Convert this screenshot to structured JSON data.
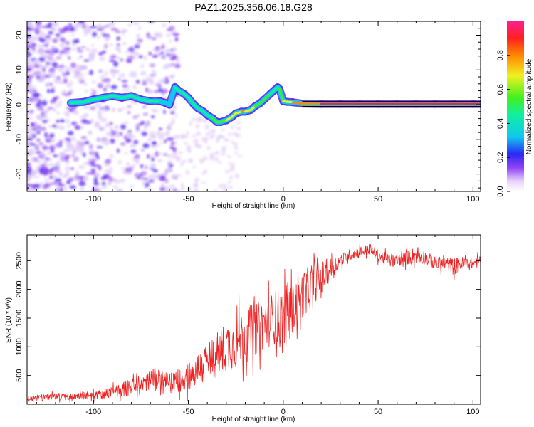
{
  "title": "PAZ1.2025.356.06.18.G28",
  "chart_data": [
    {
      "type": "heatmap",
      "name": "spectrogram",
      "xlabel": "Height of straight line (km)",
      "ylabel": "Frequency (Hz)",
      "xlim": [
        -135,
        104
      ],
      "ylim": [
        -25,
        24
      ],
      "xticks": [
        -100,
        -50,
        0,
        50,
        100
      ],
      "yticks": [
        -20,
        -10,
        0,
        10,
        20
      ],
      "colorbar": {
        "label": "Normalized spectral amplitude",
        "range": [
          0.0,
          1.0
        ],
        "ticks": [
          0.0,
          0.2,
          0.4,
          0.6,
          0.8
        ]
      },
      "ridge": {
        "x": [
          -112,
          -105,
          -100,
          -95,
          -90,
          -85,
          -80,
          -75,
          -70,
          -65,
          -62,
          -60,
          -57,
          -55,
          -52,
          -50,
          -47,
          -45,
          -42,
          -40,
          -37,
          -35,
          -33,
          -30,
          -27,
          -25,
          -22,
          -20,
          -17,
          -15,
          -12,
          -10,
          -7,
          -5,
          -3,
          -2,
          0,
          2,
          5,
          10,
          20,
          30,
          40,
          50,
          60,
          70,
          80,
          90,
          100,
          104
        ],
        "freq": [
          0.5,
          0.8,
          1.5,
          2,
          2.5,
          2,
          2.5,
          1.5,
          1,
          1,
          0.5,
          0,
          5,
          4,
          3,
          2,
          0,
          -1,
          -2,
          -3,
          -4,
          -5,
          -5,
          -4.5,
          -3.5,
          -2.5,
          -2,
          -2,
          -1.5,
          -0.5,
          0.5,
          1.5,
          3,
          4,
          5,
          4.5,
          1,
          0.8,
          0.7,
          0.3,
          0.2,
          0.2,
          0.2,
          0.2,
          0.2,
          0.2,
          0.2,
          0.2,
          0.2,
          0.2
        ],
        "amplitude": [
          0.35,
          0.35,
          0.4,
          0.45,
          0.45,
          0.4,
          0.45,
          0.4,
          0.35,
          0.3,
          0.3,
          0.3,
          0.3,
          0.35,
          0.35,
          0.4,
          0.4,
          0.45,
          0.45,
          0.45,
          0.45,
          0.5,
          0.5,
          0.55,
          0.6,
          0.65,
          0.7,
          0.7,
          0.6,
          0.55,
          0.5,
          0.5,
          0.45,
          0.45,
          0.4,
          0.45,
          0.55,
          0.6,
          0.65,
          0.75,
          0.8,
          0.85,
          0.85,
          0.85,
          0.85,
          0.85,
          0.85,
          0.85,
          0.85,
          0.85
        ]
      }
    },
    {
      "type": "line",
      "name": "snr",
      "xlabel": "Height of straight line (km)",
      "ylabel": "SNR (10 * v/v)",
      "xlim": [
        -135,
        104
      ],
      "ylim": [
        0,
        2950
      ],
      "xticks": [
        -100,
        -50,
        0,
        50,
        100
      ],
      "yticks": [
        500,
        1000,
        1500,
        2000,
        2500
      ],
      "color": "#ee2222",
      "series": {
        "x": [
          -135,
          -130,
          -125,
          -120,
          -115,
          -110,
          -105,
          -100,
          -95,
          -90,
          -85,
          -80,
          -75,
          -70,
          -65,
          -60,
          -55,
          -50,
          -45,
          -40,
          -35,
          -30,
          -25,
          -20,
          -15,
          -10,
          -5,
          0,
          5,
          10,
          15,
          20,
          25,
          30,
          35,
          40,
          45,
          50,
          55,
          60,
          65,
          70,
          75,
          80,
          85,
          90,
          95,
          100,
          104
        ],
        "y": [
          100,
          110,
          130,
          140,
          130,
          140,
          150,
          160,
          180,
          210,
          250,
          300,
          350,
          420,
          430,
          380,
          400,
          500,
          600,
          700,
          850,
          1000,
          1050,
          1200,
          1300,
          1400,
          1500,
          1450,
          1700,
          1900,
          2050,
          2200,
          2350,
          2500,
          2600,
          2650,
          2700,
          2600,
          2500,
          2500,
          2550,
          2600,
          2550,
          2450,
          2450,
          2400,
          2450,
          2450,
          2500
        ],
        "noise": [
          50,
          50,
          50,
          60,
          60,
          60,
          60,
          70,
          80,
          100,
          120,
          150,
          150,
          200,
          180,
          150,
          200,
          250,
          300,
          350,
          400,
          450,
          450,
          500,
          450,
          450,
          450,
          600,
          450,
          400,
          350,
          300,
          200,
          120,
          100,
          100,
          100,
          100,
          120,
          100,
          120,
          150,
          120,
          120,
          120,
          150,
          120,
          100,
          100
        ]
      }
    }
  ]
}
